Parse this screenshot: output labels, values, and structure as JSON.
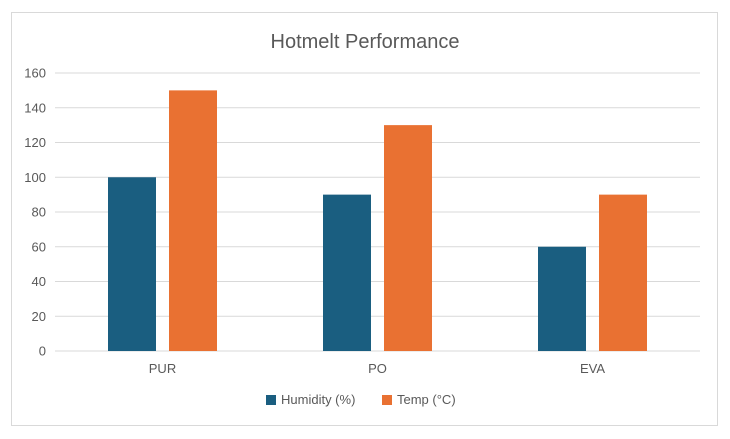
{
  "chart_data": {
    "type": "bar",
    "title": "Hotmelt Performance",
    "categories": [
      "PUR",
      "PO",
      "EVA"
    ],
    "series": [
      {
        "name": "Humidity (%)",
        "values": [
          100,
          90,
          60
        ],
        "color": "#1a5e80"
      },
      {
        "name": "Temp (°C)",
        "values": [
          150,
          130,
          90
        ],
        "color": "#e97132"
      }
    ],
    "ylim": [
      0,
      160
    ],
    "yticks": [
      0,
      20,
      40,
      60,
      80,
      100,
      120,
      140,
      160
    ],
    "grid": true,
    "legend": "bottom",
    "xlabel": "",
    "ylabel": ""
  },
  "colors": {
    "grid": "#d9d9d9",
    "text": "#595959",
    "border": "#d9d9d9"
  }
}
